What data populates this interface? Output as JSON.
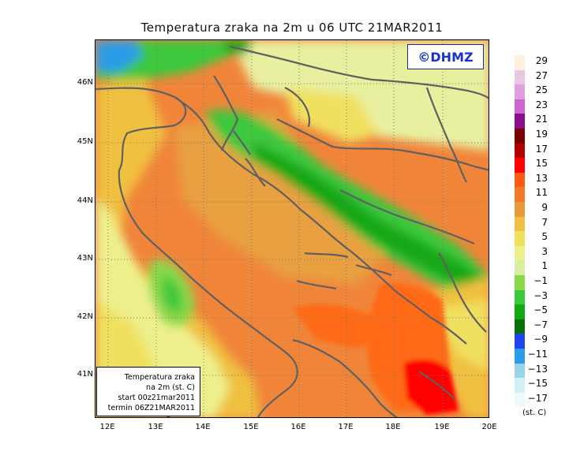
{
  "title": "Temperatura zraka na 2m u 06 UTC 21MAR2011",
  "logo": "©DHMZ",
  "lat_labels": [
    "46N",
    "45N",
    "44N",
    "43N",
    "42N",
    "41N"
  ],
  "lon_labels": [
    "12E",
    "13E",
    "14E",
    "15E",
    "16E",
    "17E",
    "18E",
    "19E",
    "20E"
  ],
  "info_box": {
    "line1": "Temperatura zraka",
    "line2": "na 2m (st. C)",
    "line3": "start 00z21mar2011",
    "line4": "termin 06Z21MAR2011"
  },
  "legend": {
    "unit": "(st. C)",
    "labels": [
      "29",
      "27",
      "25",
      "23",
      "21",
      "19",
      "17",
      "15",
      "13",
      "11",
      "9",
      "7",
      "5",
      "3",
      "1",
      "−1",
      "−3",
      "−5",
      "−7",
      "−9",
      "−11",
      "−13",
      "−15",
      "−17"
    ],
    "colors": [
      "#fff0e0",
      "#e8c8e0",
      "#e0a0e0",
      "#cc66cc",
      "#8a0f8a",
      "#7a0000",
      "#b00000",
      "#ff0000",
      "#ff5a14",
      "#f07a2a",
      "#e89a3c",
      "#f0c040",
      "#f0e060",
      "#eef08c",
      "#d6f0a0",
      "#8ad84a",
      "#3cc83c",
      "#12a812",
      "#0a6e0a",
      "#2244ee",
      "#2c9ce8",
      "#9ad4e8",
      "#d4f0f4",
      "#f0fafc"
    ]
  },
  "colors": {
    "sea_warm": "#f0853a",
    "sea_hot": "#ff6a14",
    "sea_peak": "#ff0000",
    "land_mild": "#e8f0a0",
    "land_cool": "#3cc83c",
    "coastline": "#606060",
    "logo_blue": "#1a33c8"
  }
}
